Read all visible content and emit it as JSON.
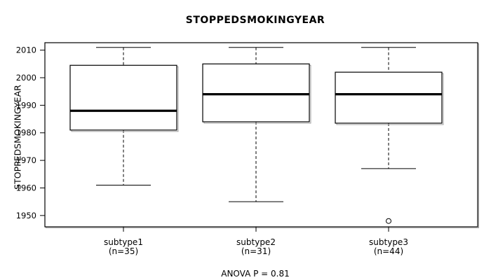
{
  "title": "STOPPEDSMOKINGYEAR",
  "y_axis": {
    "label": "STOPPEDSMOKINGYEAR",
    "tick_labels": [
      "1950",
      "1960",
      "1970",
      "1980",
      "1990",
      "2000",
      "2010"
    ]
  },
  "footer": {
    "anova_label": "ANOVA P = 0.81"
  },
  "colors": {
    "line": "#000000",
    "background": "#ffffff",
    "shadow": "#a0a0a0"
  },
  "chart_data": {
    "type": "boxplot",
    "title": "STOPPEDSMOKINGYEAR",
    "ylabel": "STOPPEDSMOKINGYEAR",
    "annotation": "ANOVA P = 0.81",
    "ylim": [
      1945.9,
      2012.7
    ],
    "y_ticks": [
      1950,
      1960,
      1970,
      1980,
      1990,
      2000,
      2010
    ],
    "grid": false,
    "categories": [
      {
        "label": "subtype1",
        "sublabel": "(n=35)",
        "n": 35,
        "whisker_low": 1961,
        "q1": 1981,
        "median": 1988,
        "q3": 2004.5,
        "whisker_high": 2011,
        "outliers": []
      },
      {
        "label": "subtype2",
        "sublabel": "(n=31)",
        "n": 31,
        "whisker_low": 1955,
        "q1": 1984,
        "median": 1994,
        "q3": 2005,
        "whisker_high": 2011,
        "outliers": []
      },
      {
        "label": "subtype3",
        "sublabel": "(n=44)",
        "n": 44,
        "whisker_low": 1967,
        "q1": 1983.5,
        "median": 1994,
        "q3": 2002,
        "whisker_high": 2011,
        "outliers": [
          1948
        ]
      }
    ]
  }
}
